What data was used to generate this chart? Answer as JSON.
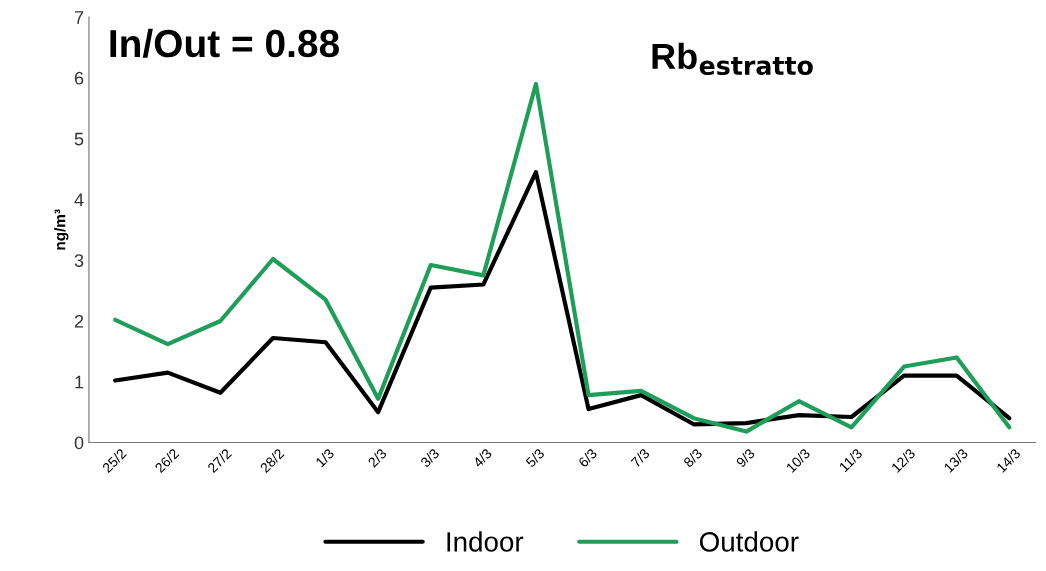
{
  "chart_data": {
    "type": "line",
    "title": "Rb$_{estratto}$",
    "ylabel": "ng/m³",
    "annotations": [
      "In/Out = 0.88"
    ],
    "categories": [
      "25/2",
      "26/2",
      "27/2",
      "28/2",
      "1/3",
      "2/3",
      "3/3",
      "4/3",
      "5/3",
      "6/3",
      "7/3",
      "8/3",
      "9/3",
      "10/3",
      "11/3",
      "12/3",
      "13/3",
      "14/3"
    ],
    "series": [
      {
        "name": "Indoor",
        "color": "#000000",
        "values": [
          1.02,
          1.15,
          0.82,
          1.72,
          1.65,
          0.5,
          2.55,
          2.6,
          4.45,
          0.55,
          0.78,
          0.3,
          0.32,
          0.45,
          0.42,
          1.1,
          1.1,
          0.4
        ]
      },
      {
        "name": "Outdoor",
        "color": "#1f9e5a",
        "values": [
          2.02,
          1.62,
          2.0,
          3.02,
          2.35,
          0.72,
          2.92,
          2.75,
          5.9,
          0.78,
          0.85,
          0.4,
          0.18,
          0.68,
          0.25,
          1.25,
          1.4,
          0.25
        ]
      }
    ],
    "ylim": [
      0,
      7
    ],
    "yticks": [
      0,
      1,
      2,
      3,
      4,
      5,
      6,
      7
    ],
    "grid": false,
    "legend": "bottom",
    "marker": "none",
    "line_style": "solid"
  }
}
